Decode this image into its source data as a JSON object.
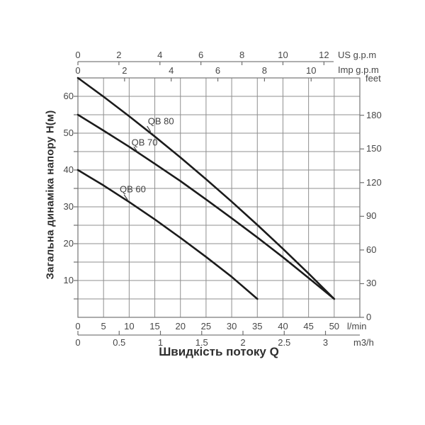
{
  "chart_data": {
    "type": "line",
    "xlabel": "Швидкість потоку Q",
    "ylabel": "Загальна динаміка напору Н(м)",
    "x_range_lmin": [
      0,
      55
    ],
    "y_range_m": [
      0,
      65
    ],
    "grid": {
      "x_step_lmin": 5,
      "y_step_m": 5,
      "grid_on": true
    },
    "x_axes": [
      {
        "id": "us_gpm",
        "label": "US g.p.m",
        "position": "top-outer",
        "lmin_per_unit": 4.0,
        "ticks": [
          0,
          2,
          4,
          6,
          8,
          10,
          12
        ]
      },
      {
        "id": "imp_gpm",
        "label": "Imp g.p.m",
        "position": "top-inner",
        "lmin_per_unit": 4.55,
        "ticks": [
          0,
          2,
          4,
          6,
          8,
          10
        ]
      },
      {
        "id": "lmin",
        "label": "l/min",
        "position": "bottom-inner",
        "lmin_per_unit": 1,
        "ticks": [
          0,
          5,
          10,
          15,
          20,
          25,
          30,
          35,
          40,
          45,
          50
        ]
      },
      {
        "id": "m3h",
        "label": "m3/h",
        "position": "bottom-outer",
        "lmin_per_unit": 16.1,
        "ticks": [
          0,
          0.5,
          1,
          1.5,
          2,
          2.5,
          3
        ]
      }
    ],
    "y_axes": [
      {
        "id": "meters",
        "label": "Н(м)",
        "position": "left",
        "m_per_unit": 1,
        "ticks": [
          10,
          20,
          30,
          40,
          50,
          60
        ],
        "minor_step": 5
      },
      {
        "id": "feet",
        "label": "feet",
        "position": "right",
        "m_per_unit": 0.3048,
        "ticks": [
          0,
          30,
          60,
          90,
          120,
          150,
          180
        ]
      }
    ],
    "series": [
      {
        "name": "QB 80",
        "points": [
          [
            0,
            65
          ],
          [
            5,
            59.9
          ],
          [
            10,
            54.6
          ],
          [
            15,
            49.1
          ],
          [
            20,
            43.4
          ],
          [
            25,
            37.5
          ],
          [
            30,
            31.4
          ],
          [
            35,
            25.1
          ],
          [
            40,
            18.6
          ],
          [
            45,
            11.9
          ],
          [
            50,
            5
          ]
        ],
        "label_at": [
          16.2,
          53.2
        ],
        "leader": [
          [
            13.5,
            51.9
          ],
          [
            14.2,
            50.4
          ]
        ]
      },
      {
        "name": "QB 70",
        "points": [
          [
            0,
            55
          ],
          [
            5,
            50.7
          ],
          [
            10,
            46.3
          ],
          [
            15,
            41.7
          ],
          [
            20,
            37.0
          ],
          [
            25,
            32.0
          ],
          [
            30,
            26.9
          ],
          [
            35,
            21.7
          ],
          [
            40,
            16.3
          ],
          [
            45,
            10.7
          ],
          [
            50,
            5
          ]
        ],
        "label_at": [
          13.0,
          47.5
        ],
        "leader": [
          [
            10.9,
            46.3
          ],
          [
            11.6,
            45.0
          ]
        ]
      },
      {
        "name": "QB 60",
        "points": [
          [
            0,
            40
          ],
          [
            5,
            35.8
          ],
          [
            10,
            31.3
          ],
          [
            15,
            26.6
          ],
          [
            20,
            21.6
          ],
          [
            25,
            16.4
          ],
          [
            30,
            11.0
          ],
          [
            35,
            5
          ]
        ],
        "label_at": [
          10.7,
          34.8
        ],
        "leader": [
          [
            9.0,
            33.3
          ],
          [
            9.7,
            31.9
          ]
        ]
      }
    ],
    "colors": {
      "curve": "#1b1b1b",
      "grid": "#8f8f8f",
      "axis": "#757575",
      "text": "#474747",
      "background": "#ffffff"
    }
  }
}
